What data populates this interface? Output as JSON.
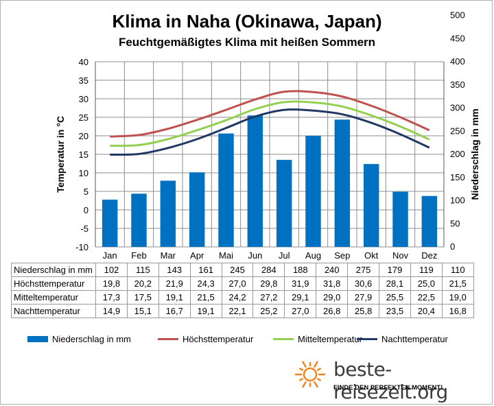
{
  "title": "Klima in Naha (Okinawa, Japan)",
  "subtitle": "Feuchtgemäßigtes  Klima mit heißen Sommern",
  "chart_data": {
    "type": "bar+line",
    "categories": [
      "Jan",
      "Feb",
      "Mar",
      "Apr",
      "Mai",
      "Jun",
      "Jul",
      "Aug",
      "Sep",
      "Okt",
      "Nov",
      "Dez"
    ],
    "y_left": {
      "label": "Temperatur in °C",
      "min": -10,
      "max": 40,
      "step": 5
    },
    "y_right": {
      "label": "Niederschlag in mm",
      "min": 0,
      "max": 400,
      "step": 50
    },
    "grid": true,
    "legend_position": "bottom",
    "series": [
      {
        "name": "Niederschlag in mm",
        "type": "bar",
        "axis": "right",
        "color": "#0070c0",
        "values": [
          102,
          115,
          143,
          161,
          245,
          284,
          188,
          240,
          275,
          179,
          119,
          110
        ],
        "display": [
          "102",
          "115",
          "143",
          "161",
          "245",
          "284",
          "188",
          "240",
          "275",
          "179",
          "119",
          "110"
        ]
      },
      {
        "name": "Höchsttemperatur",
        "type": "line",
        "axis": "left",
        "color": "#c0504d",
        "values": [
          19.8,
          20.2,
          21.9,
          24.3,
          27.0,
          29.8,
          31.9,
          31.8,
          30.6,
          28.1,
          25.0,
          21.5
        ],
        "display": [
          "19,8",
          "20,2",
          "21,9",
          "24,3",
          "27,0",
          "29,8",
          "31,9",
          "31,8",
          "30,6",
          "28,1",
          "25,0",
          "21,5"
        ]
      },
      {
        "name": "Mitteltemperatur",
        "type": "line",
        "axis": "left",
        "color": "#92d050",
        "values": [
          17.3,
          17.5,
          19.1,
          21.5,
          24.2,
          27.2,
          29.1,
          29.0,
          27.9,
          25.5,
          22.5,
          19.0
        ],
        "display": [
          "17,3",
          "17,5",
          "19,1",
          "21,5",
          "24,2",
          "27,2",
          "29,1",
          "29,0",
          "27,9",
          "25,5",
          "22,5",
          "19,0"
        ]
      },
      {
        "name": "Nachttemperatur",
        "type": "line",
        "axis": "left",
        "color": "#1f3864",
        "values": [
          14.9,
          15.1,
          16.7,
          19.1,
          22.1,
          25.2,
          27.0,
          26.8,
          25.8,
          23.5,
          20.4,
          16.8
        ],
        "display": [
          "14,9",
          "15,1",
          "16,7",
          "19,1",
          "22,1",
          "25,2",
          "27,0",
          "26,8",
          "25,8",
          "23,5",
          "20,4",
          "16,8"
        ]
      }
    ]
  },
  "brand": {
    "name": "beste-reisezeit.org",
    "tagline": "FINDE DEN PERFEKTEN MOMENT!",
    "icon": "sun-icon",
    "icon_color": "#f4831f"
  }
}
